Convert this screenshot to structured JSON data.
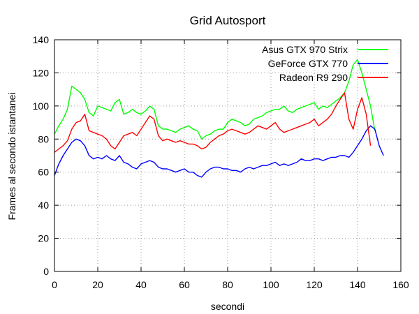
{
  "chart_data": {
    "type": "line",
    "title": "Grid Autosport",
    "xlabel": "secondi",
    "ylabel": "Frames al secondo istantanei",
    "xlim": [
      0,
      160
    ],
    "ylim": [
      0,
      140
    ],
    "xticks": [
      0,
      20,
      40,
      60,
      80,
      100,
      120,
      140,
      160
    ],
    "yticks": [
      0,
      20,
      40,
      60,
      80,
      100,
      120,
      140
    ],
    "grid": true,
    "legend_position": "top-right",
    "series": [
      {
        "name": "Asus GTX 970 Strix",
        "color": "#00ff00",
        "x": [
          0,
          2,
          4,
          6,
          8,
          10,
          12,
          14,
          16,
          18,
          20,
          22,
          24,
          26,
          28,
          30,
          32,
          34,
          36,
          38,
          40,
          42,
          44,
          46,
          48,
          50,
          52,
          54,
          56,
          58,
          60,
          62,
          64,
          66,
          68,
          70,
          72,
          74,
          76,
          78,
          80,
          82,
          84,
          86,
          88,
          90,
          92,
          94,
          96,
          98,
          100,
          102,
          104,
          106,
          108,
          110,
          112,
          114,
          116,
          118,
          120,
          122,
          124,
          126,
          128,
          130,
          132,
          134,
          136,
          138,
          140,
          142,
          144,
          146,
          148
        ],
        "y": [
          83,
          88,
          92,
          98,
          112,
          110,
          108,
          104,
          96,
          94,
          100,
          99,
          98,
          97,
          102,
          104,
          95,
          96,
          98,
          96,
          95,
          97,
          100,
          98,
          88,
          86,
          86,
          85,
          84,
          86,
          87,
          88,
          86,
          85,
          80,
          82,
          83,
          85,
          86,
          86,
          90,
          92,
          91,
          90,
          88,
          89,
          92,
          93,
          94,
          96,
          97,
          98,
          98,
          100,
          97,
          96,
          98,
          99,
          100,
          101,
          102,
          98,
          100,
          99,
          101,
          103,
          105,
          108,
          115,
          125,
          128,
          120,
          110,
          100,
          85
        ]
      },
      {
        "name": "GeForce GTX 770",
        "color": "#0000ff",
        "x": [
          0,
          2,
          4,
          6,
          8,
          10,
          12,
          14,
          16,
          18,
          20,
          22,
          24,
          26,
          28,
          30,
          32,
          34,
          36,
          38,
          40,
          42,
          44,
          46,
          48,
          50,
          52,
          54,
          56,
          58,
          60,
          62,
          64,
          66,
          68,
          70,
          72,
          74,
          76,
          78,
          80,
          82,
          84,
          86,
          88,
          90,
          92,
          94,
          96,
          98,
          100,
          102,
          104,
          106,
          108,
          110,
          112,
          114,
          116,
          118,
          120,
          122,
          124,
          126,
          128,
          130,
          132,
          134,
          136,
          138,
          140,
          142,
          144,
          146,
          148,
          150,
          152
        ],
        "y": [
          58,
          65,
          70,
          74,
          78,
          80,
          79,
          76,
          70,
          68,
          69,
          68,
          70,
          68,
          67,
          70,
          66,
          65,
          63,
          62,
          65,
          66,
          67,
          66,
          63,
          62,
          62,
          61,
          60,
          61,
          62,
          60,
          60,
          58,
          57,
          60,
          62,
          63,
          63,
          62,
          62,
          61,
          61,
          60,
          62,
          63,
          62,
          63,
          64,
          64,
          65,
          66,
          64,
          65,
          64,
          65,
          66,
          68,
          67,
          67,
          68,
          68,
          67,
          68,
          69,
          69,
          70,
          70,
          69,
          72,
          76,
          80,
          85,
          88,
          86,
          76,
          70
        ]
      },
      {
        "name": "Radeon R9 290",
        "color": "#ff0000",
        "x": [
          0,
          2,
          4,
          6,
          8,
          10,
          12,
          14,
          16,
          18,
          20,
          22,
          24,
          26,
          28,
          30,
          32,
          34,
          36,
          38,
          40,
          42,
          44,
          46,
          48,
          50,
          52,
          54,
          56,
          58,
          60,
          62,
          64,
          66,
          68,
          70,
          72,
          74,
          76,
          78,
          80,
          82,
          84,
          86,
          88,
          90,
          92,
          94,
          96,
          98,
          100,
          102,
          104,
          106,
          108,
          110,
          112,
          114,
          116,
          118,
          120,
          122,
          124,
          126,
          128,
          130,
          132,
          134,
          136,
          138,
          140,
          142,
          144,
          146
        ],
        "y": [
          72,
          74,
          76,
          79,
          86,
          90,
          91,
          95,
          85,
          84,
          83,
          82,
          80,
          76,
          74,
          78,
          82,
          83,
          84,
          82,
          86,
          90,
          94,
          92,
          82,
          79,
          80,
          79,
          78,
          79,
          78,
          77,
          77,
          76,
          74,
          75,
          78,
          80,
          82,
          83,
          85,
          86,
          85,
          84,
          83,
          84,
          86,
          88,
          87,
          86,
          88,
          90,
          86,
          84,
          85,
          86,
          87,
          88,
          89,
          90,
          92,
          88,
          90,
          92,
          95,
          100,
          104,
          108,
          92,
          86,
          98,
          105,
          95,
          76
        ]
      }
    ]
  }
}
